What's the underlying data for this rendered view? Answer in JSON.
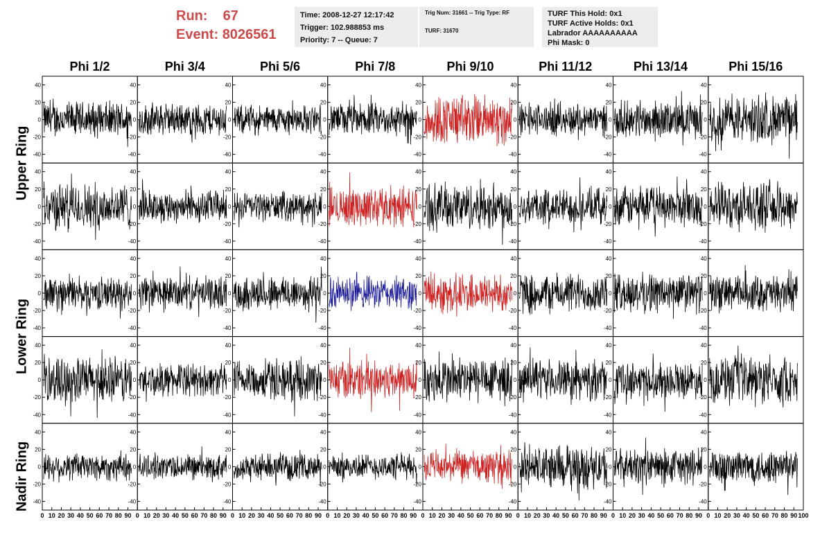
{
  "header": {
    "run_label": "Run:",
    "run_value": "67",
    "event_label": "Event:",
    "event_value": "8026561",
    "run_color": "#cc4a4a"
  },
  "info": {
    "time": "Time: 2008-12-27 12:17:42",
    "trigger": "Trigger: 102.988853 ms",
    "priority": "Priority: 7 -- Queue: 7",
    "trig_num": "Trig Num: 31661 -- Trig Type: RF",
    "turf": "TURF: 31670",
    "turf_this_hold": "TURF This Hold: 0x1",
    "turf_active_holds": "TURF Active Holds: 0x1",
    "labrador": "Labrador AAAAAAAAAA",
    "phi_mask": "Phi Mask: 0"
  },
  "columns": [
    "Phi 1/2",
    "Phi 3/4",
    "Phi 5/6",
    "Phi 7/8",
    "Phi 9/10",
    "Phi 11/12",
    "Phi 13/14",
    "Phi 15/16"
  ],
  "ring_labels": [
    "Upper Ring",
    "Lower Ring",
    "Nadir Ring"
  ],
  "chart_data": {
    "type": "line",
    "description_grid": "5 rows x 8 columns of waveform panels",
    "xlim": [
      0,
      100
    ],
    "ylim": [
      -50,
      50
    ],
    "x_ticks": [
      "0",
      "10",
      "20",
      "30",
      "40",
      "50",
      "60",
      "70",
      "80",
      "90",
      "100"
    ],
    "y_ticks": [
      "40",
      "20",
      "0",
      "-20",
      "-40"
    ],
    "colors": {
      "default": "#000000",
      "red": "#cc2222",
      "blue": "#1a1a99"
    },
    "panel_colors": [
      [
        "default",
        "default",
        "default",
        "default",
        "red",
        "default",
        "default",
        "default"
      ],
      [
        "default",
        "default",
        "default",
        "red",
        "default",
        "default",
        "default",
        "default"
      ],
      [
        "default",
        "default",
        "default",
        "blue",
        "red",
        "default",
        "default",
        "default"
      ],
      [
        "default",
        "default",
        "default",
        "red",
        "default",
        "default",
        "default",
        "default"
      ],
      [
        "default",
        "default",
        "default",
        "default",
        "red",
        "default",
        "default",
        "default"
      ]
    ],
    "panel_amplitude": [
      [
        20,
        18,
        16,
        18,
        28,
        18,
        20,
        26
      ],
      [
        26,
        18,
        16,
        22,
        26,
        20,
        22,
        26
      ],
      [
        18,
        18,
        20,
        18,
        22,
        22,
        22,
        20
      ],
      [
        26,
        18,
        22,
        22,
        26,
        22,
        20,
        26
      ],
      [
        16,
        14,
        14,
        14,
        18,
        24,
        20,
        20
      ]
    ]
  }
}
